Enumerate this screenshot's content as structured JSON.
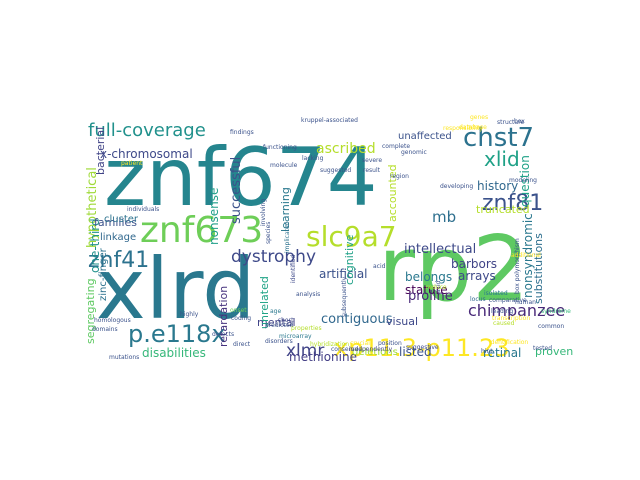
{
  "words": [
    {
      "text": "znf674",
      "color": "#25858e"
    },
    {
      "text": "xlrd",
      "color": "#2a788e"
    },
    {
      "text": "rp2",
      "color": "#5ec962"
    },
    {
      "text": "znf673",
      "color": "#6ece58"
    },
    {
      "text": "slc9a7",
      "color": "#b5de2b"
    },
    {
      "text": "chst7",
      "color": "#2c728e"
    },
    {
      "text": "full-coverage",
      "color": "#21918c"
    },
    {
      "text": "p.e118x",
      "color": "#2a788e"
    },
    {
      "text": "xp11.3-p11.23",
      "color": "#fde725"
    },
    {
      "text": "znf81",
      "color": "#3b528b"
    },
    {
      "text": "xlid",
      "color": "#1fa187"
    },
    {
      "text": "znf41",
      "color": "#2c728e"
    },
    {
      "text": "dystrophy",
      "color": "#3e4989"
    },
    {
      "text": "chimpanzee",
      "color": "#482878"
    },
    {
      "text": "xlmr",
      "color": "#414487"
    },
    {
      "text": "mb",
      "color": "#2e6f8e"
    },
    {
      "text": "ascribed",
      "color": "#b5de2b"
    },
    {
      "text": "hypothetical",
      "color": "#a0da39"
    },
    {
      "text": "x-chromosomal",
      "color": "#3e4989"
    },
    {
      "text": "one-third",
      "color": "#21918c"
    },
    {
      "text": "nonsense",
      "color": "#1f9e89"
    },
    {
      "text": "successful",
      "color": "#3b528b"
    },
    {
      "text": "learning",
      "color": "#2a788e"
    },
    {
      "text": "intellectual",
      "color": "#3e4989"
    },
    {
      "text": "history",
      "color": "#31688e"
    },
    {
      "text": "question",
      "color": "#1fa187"
    },
    {
      "text": "accounted",
      "color": "#b5de2b"
    },
    {
      "text": "nonsyndromic",
      "color": "#2a788e"
    },
    {
      "text": "truncated",
      "color": "#b5de2b"
    },
    {
      "text": "arrays",
      "color": "#3e4989"
    },
    {
      "text": "barbors",
      "color": "#414487"
    },
    {
      "text": "artificial",
      "color": "#3b528b"
    },
    {
      "text": "cognitive",
      "color": "#1fa187"
    },
    {
      "text": "stature",
      "color": "#440154"
    },
    {
      "text": "belongs",
      "color": "#2a788e"
    },
    {
      "text": "proline",
      "color": "#482878"
    },
    {
      "text": "substitutions",
      "color": "#2e6f8e"
    },
    {
      "text": "contiguous",
      "color": "#31688e"
    },
    {
      "text": "visual",
      "color": "#3e4989"
    },
    {
      "text": "mental",
      "color": "#414487"
    },
    {
      "text": "unrelated",
      "color": "#20a486"
    },
    {
      "text": "retardation",
      "color": "#46327e"
    },
    {
      "text": "segregating",
      "color": "#5ec962"
    },
    {
      "text": "disabilities",
      "color": "#35b779"
    },
    {
      "text": "methionine",
      "color": "#433e85"
    },
    {
      "text": "listed",
      "color": "#3b528b"
    },
    {
      "text": "retinal",
      "color": "#2a788e"
    },
    {
      "text": "proven",
      "color": "#35b779"
    },
    {
      "text": "deletions",
      "color": "#a0da39"
    },
    {
      "text": "families",
      "color": "#3b528b"
    },
    {
      "text": "linkage",
      "color": "#31688e"
    },
    {
      "text": "cluster",
      "color": "#2c728e"
    },
    {
      "text": "bacterial",
      "color": "#414487"
    },
    {
      "text": "zinc-finger",
      "color": "#2c728e"
    },
    {
      "text": "unaffected",
      "color": "#3b528b"
    },
    {
      "text": "locus",
      "color": "#31688e"
    },
    {
      "text": "genomic",
      "color": "#3b528b"
    },
    {
      "text": "syndrome",
      "color": "#35b779"
    },
    {
      "text": "conserved",
      "color": "#3b528b"
    },
    {
      "text": "suggestive",
      "color": "#3e4989"
    },
    {
      "text": "mutations",
      "color": "#3b528b"
    },
    {
      "text": "complete",
      "color": "#3b528b"
    },
    {
      "text": "highly",
      "color": "#3b528b"
    },
    {
      "text": "age",
      "color": "#2a788e"
    },
    {
      "text": "short",
      "color": "#3e4989"
    },
    {
      "text": "onset",
      "color": "#6ece58"
    },
    {
      "text": "predicted",
      "color": "#3b528b"
    },
    {
      "text": "defects",
      "color": "#3b528b"
    },
    {
      "text": "coding",
      "color": "#3b528b"
    },
    {
      "text": "disorders",
      "color": "#3b528b"
    },
    {
      "text": "microarray",
      "color": "#2a788e"
    },
    {
      "text": "properties",
      "color": "#b5de2b"
    },
    {
      "text": "hybridization",
      "color": "#b5de2b"
    },
    {
      "text": "independently",
      "color": "#414487"
    },
    {
      "text": "implicated",
      "color": "#2c728e"
    },
    {
      "text": "identified",
      "color": "#3e4989"
    },
    {
      "text": "involving",
      "color": "#3b528b"
    },
    {
      "text": "species",
      "color": "#3b528b"
    },
    {
      "text": "lacking",
      "color": "#3b528b"
    },
    {
      "text": "severe",
      "color": "#3b528b"
    },
    {
      "text": "result",
      "color": "#3b528b"
    },
    {
      "text": "acid",
      "color": "#3b528b"
    },
    {
      "text": "reduce",
      "color": "#b5de2b"
    },
    {
      "text": "region",
      "color": "#3b528b"
    },
    {
      "text": "crucial",
      "color": "#fde725"
    },
    {
      "text": "position",
      "color": "#3b528b"
    },
    {
      "text": "common",
      "color": "#3b528b"
    },
    {
      "text": "tested",
      "color": "#3b528b"
    },
    {
      "text": "modeling",
      "color": "#3b528b"
    },
    {
      "text": "structure",
      "color": "#3b528b"
    },
    {
      "text": "responsibility",
      "color": "#fde725"
    },
    {
      "text": "kruppel-associated",
      "color": "#3b528b"
    },
    {
      "text": "patient",
      "color": "#fde725"
    },
    {
      "text": "individuals",
      "color": "#3b528b"
    },
    {
      "text": "homologous",
      "color": "#3b528b"
    },
    {
      "text": "domains",
      "color": "#3b528b"
    },
    {
      "text": "direct",
      "color": "#3b528b"
    },
    {
      "text": "analysis",
      "color": "#3b528b"
    },
    {
      "text": "subsequently",
      "color": "#3b528b"
    },
    {
      "text": "box polymorphism",
      "color": "#3b528b"
    },
    {
      "text": "identification",
      "color": "#fde725"
    },
    {
      "text": "leading",
      "color": "#3b528b"
    },
    {
      "text": "caused",
      "color": "#b5de2b"
    },
    {
      "text": "isolated",
      "color": "#2a788e"
    },
    {
      "text": "comparative",
      "color": "#3b528b"
    },
    {
      "text": "additional",
      "color": "#fde725"
    },
    {
      "text": "transcription",
      "color": "#fde725"
    },
    {
      "text": "functioning",
      "color": "#3b528b"
    },
    {
      "text": "findings",
      "color": "#3b528b"
    },
    {
      "text": "molecule",
      "color": "#3b528b"
    },
    {
      "text": "suggested",
      "color": "#3b528b"
    },
    {
      "text": "database",
      "color": "#fde725"
    },
    {
      "text": "box",
      "color": "#3b528b"
    },
    {
      "text": "human",
      "color": "#3b528b"
    },
    {
      "text": "developing",
      "color": "#3b528b"
    },
    {
      "text": "hint",
      "color": "#3b528b"
    },
    {
      "text": "genes",
      "color": "#fde725"
    },
    {
      "text": "acid",
      "color": "#3b528b"
    }
  ]
}
